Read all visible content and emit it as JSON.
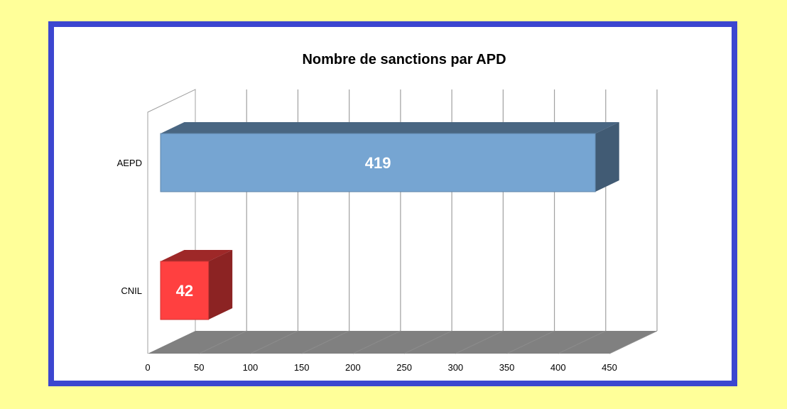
{
  "chart_data": {
    "type": "bar",
    "orientation": "horizontal",
    "style": "3d",
    "title": "Nombre de sanctions par APD",
    "categories": [
      "AEPD",
      "CNIL"
    ],
    "values": [
      419,
      42
    ],
    "data_labels": [
      "419",
      "42"
    ],
    "bar_colors": [
      "#76a5d2",
      "#ff4040"
    ],
    "xlim": [
      0,
      450
    ],
    "x_ticks": [
      "0",
      "50",
      "100",
      "150",
      "200",
      "250",
      "300",
      "350",
      "400",
      "450"
    ],
    "grid": true,
    "legend": "none",
    "xlabel": "",
    "ylabel": ""
  },
  "colors": {
    "page_background": "#ffff99",
    "frame_border": "#3c46d0",
    "floor": "#808080",
    "grid": "#a0a0a0"
  }
}
